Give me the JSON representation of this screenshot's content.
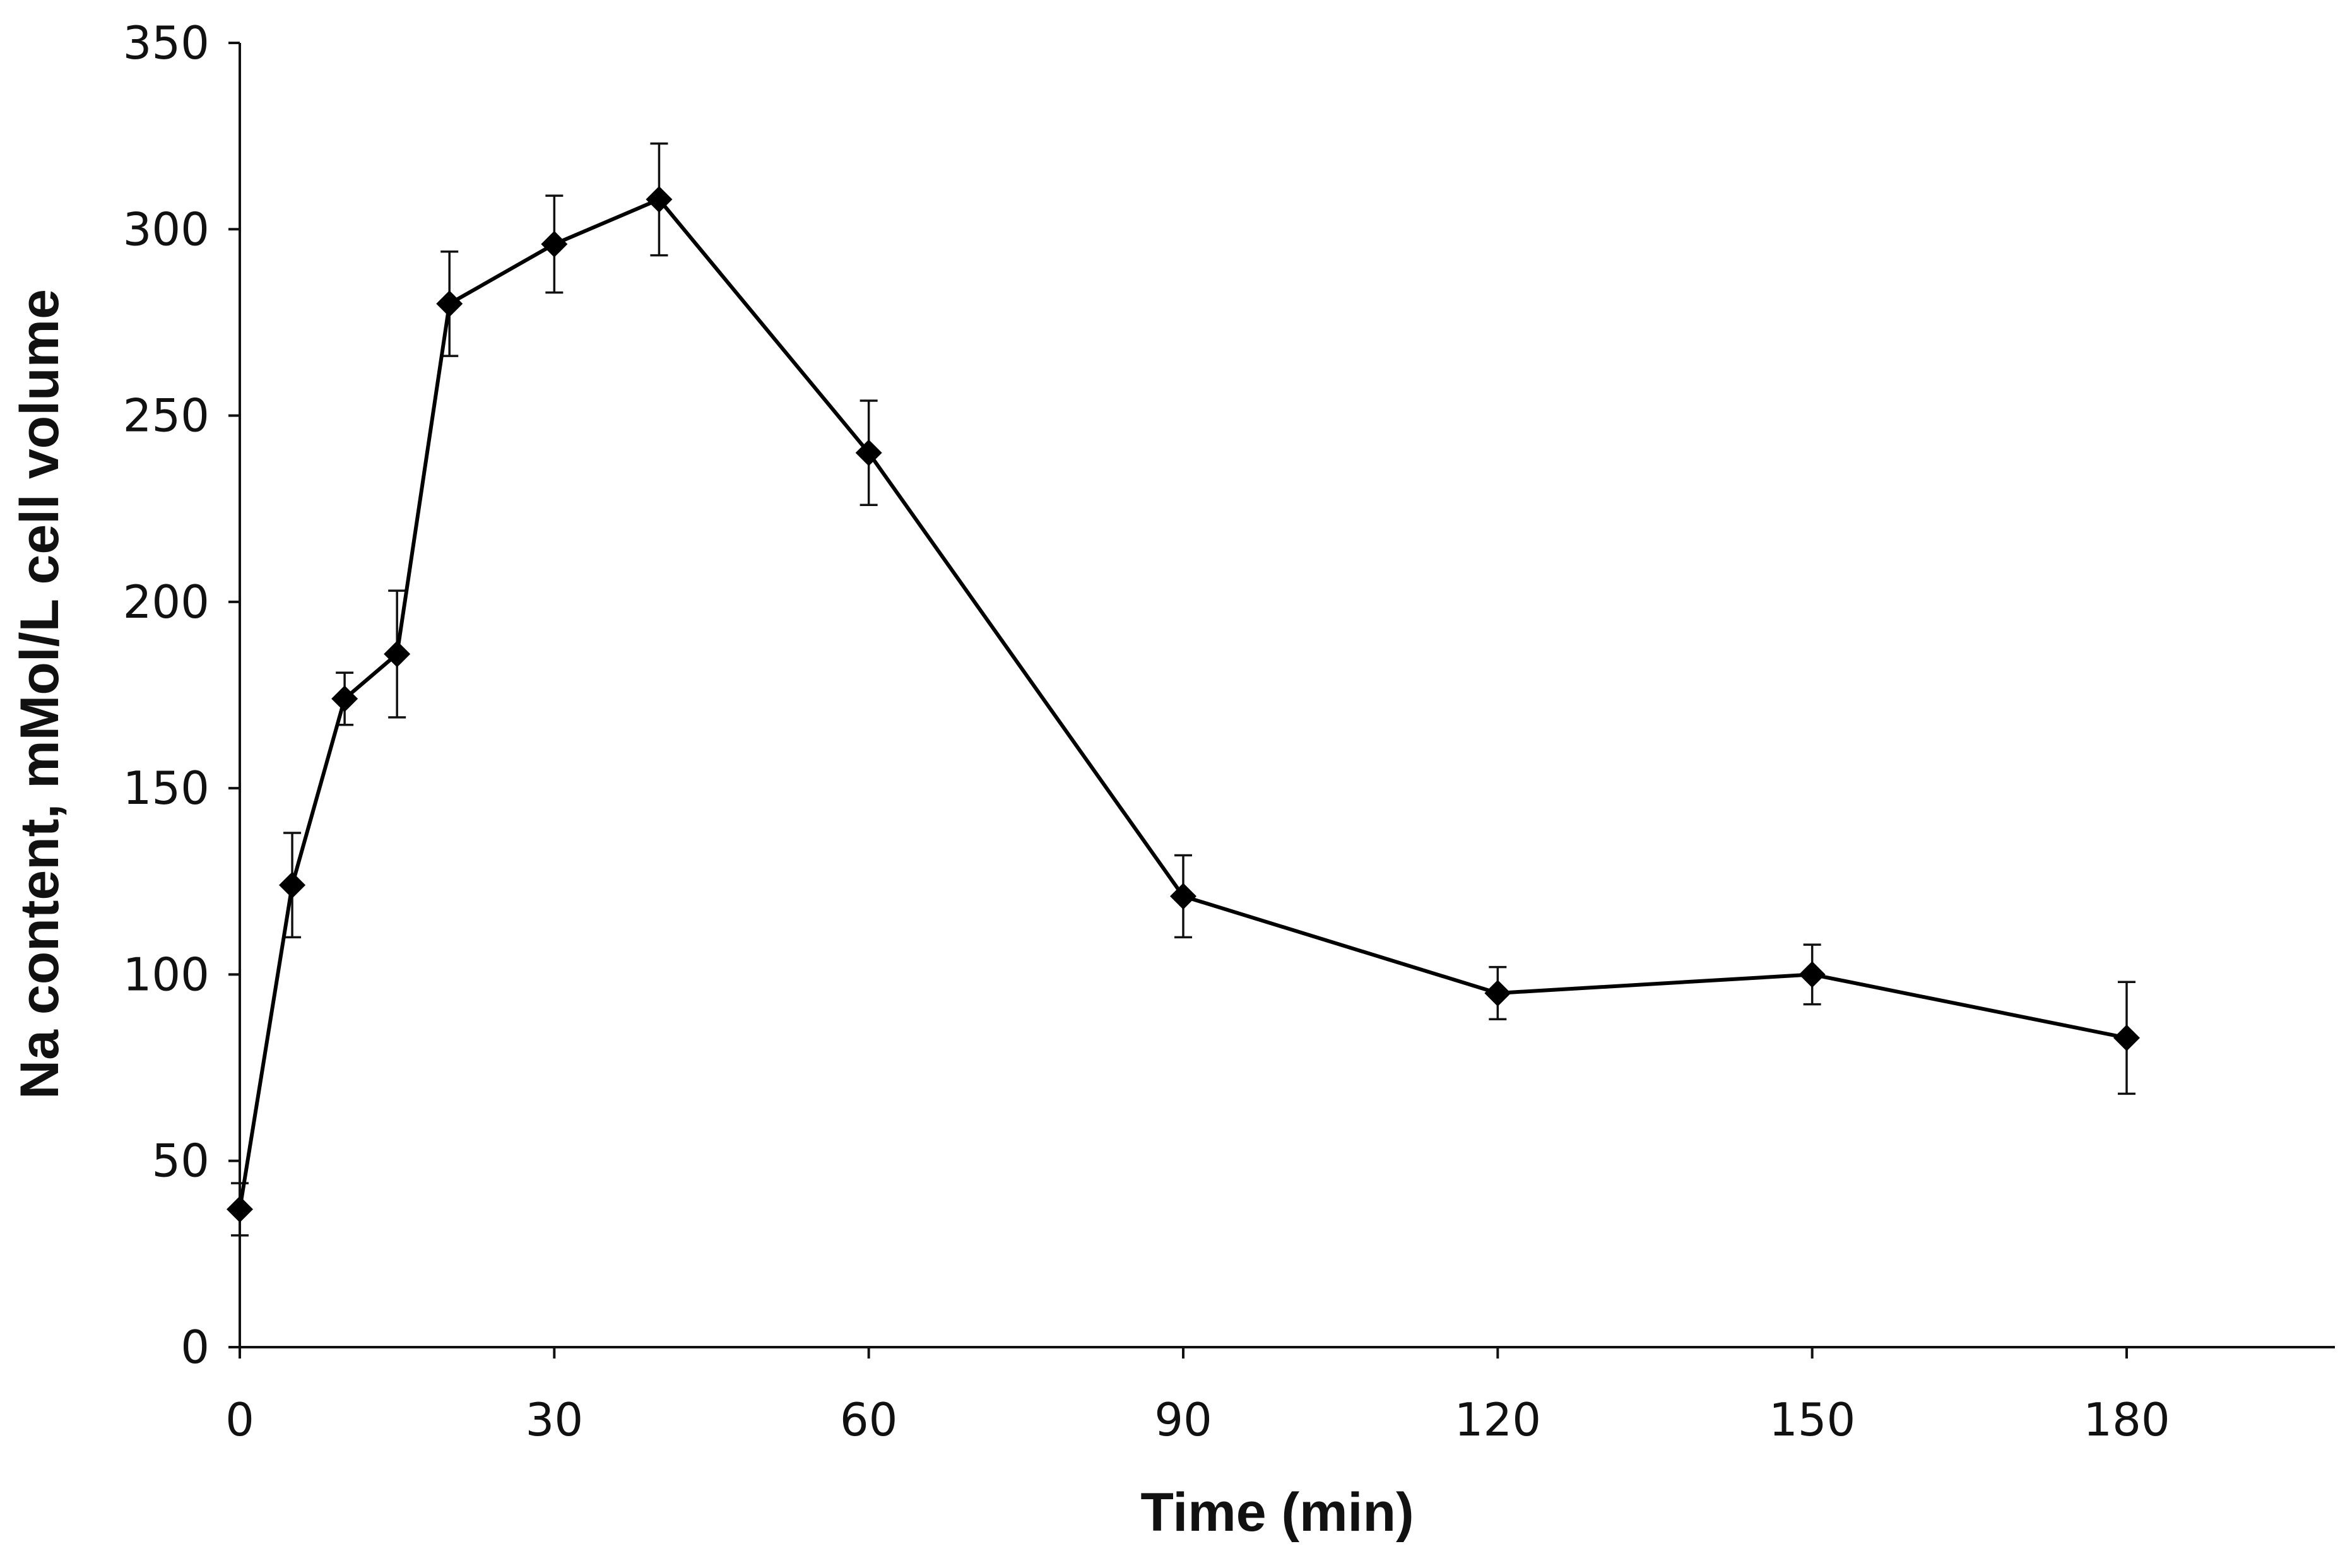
{
  "chart_data": {
    "type": "line",
    "title": "",
    "xlabel": "Time (min)",
    "ylabel": "Na content, mMol/L cell volume",
    "xlim": [
      0,
      200
    ],
    "ylim": [
      0,
      350
    ],
    "x_ticks": [
      0,
      30,
      60,
      90,
      120,
      150,
      180
    ],
    "y_ticks": [
      0,
      50,
      100,
      150,
      200,
      250,
      300,
      350
    ],
    "grid": false,
    "legend": "none",
    "series": [
      {
        "name": "Na content",
        "marker": "diamond",
        "color": "#000000",
        "x": [
          0,
          5,
          10,
          15,
          20,
          30,
          40,
          60,
          90,
          120,
          150,
          180
        ],
        "y": [
          37,
          124,
          174,
          186,
          280,
          296,
          308,
          240,
          121,
          95,
          100,
          83
        ],
        "error": [
          7,
          14,
          7,
          17,
          14,
          13,
          15,
          14,
          11,
          7,
          8,
          15
        ]
      }
    ]
  }
}
